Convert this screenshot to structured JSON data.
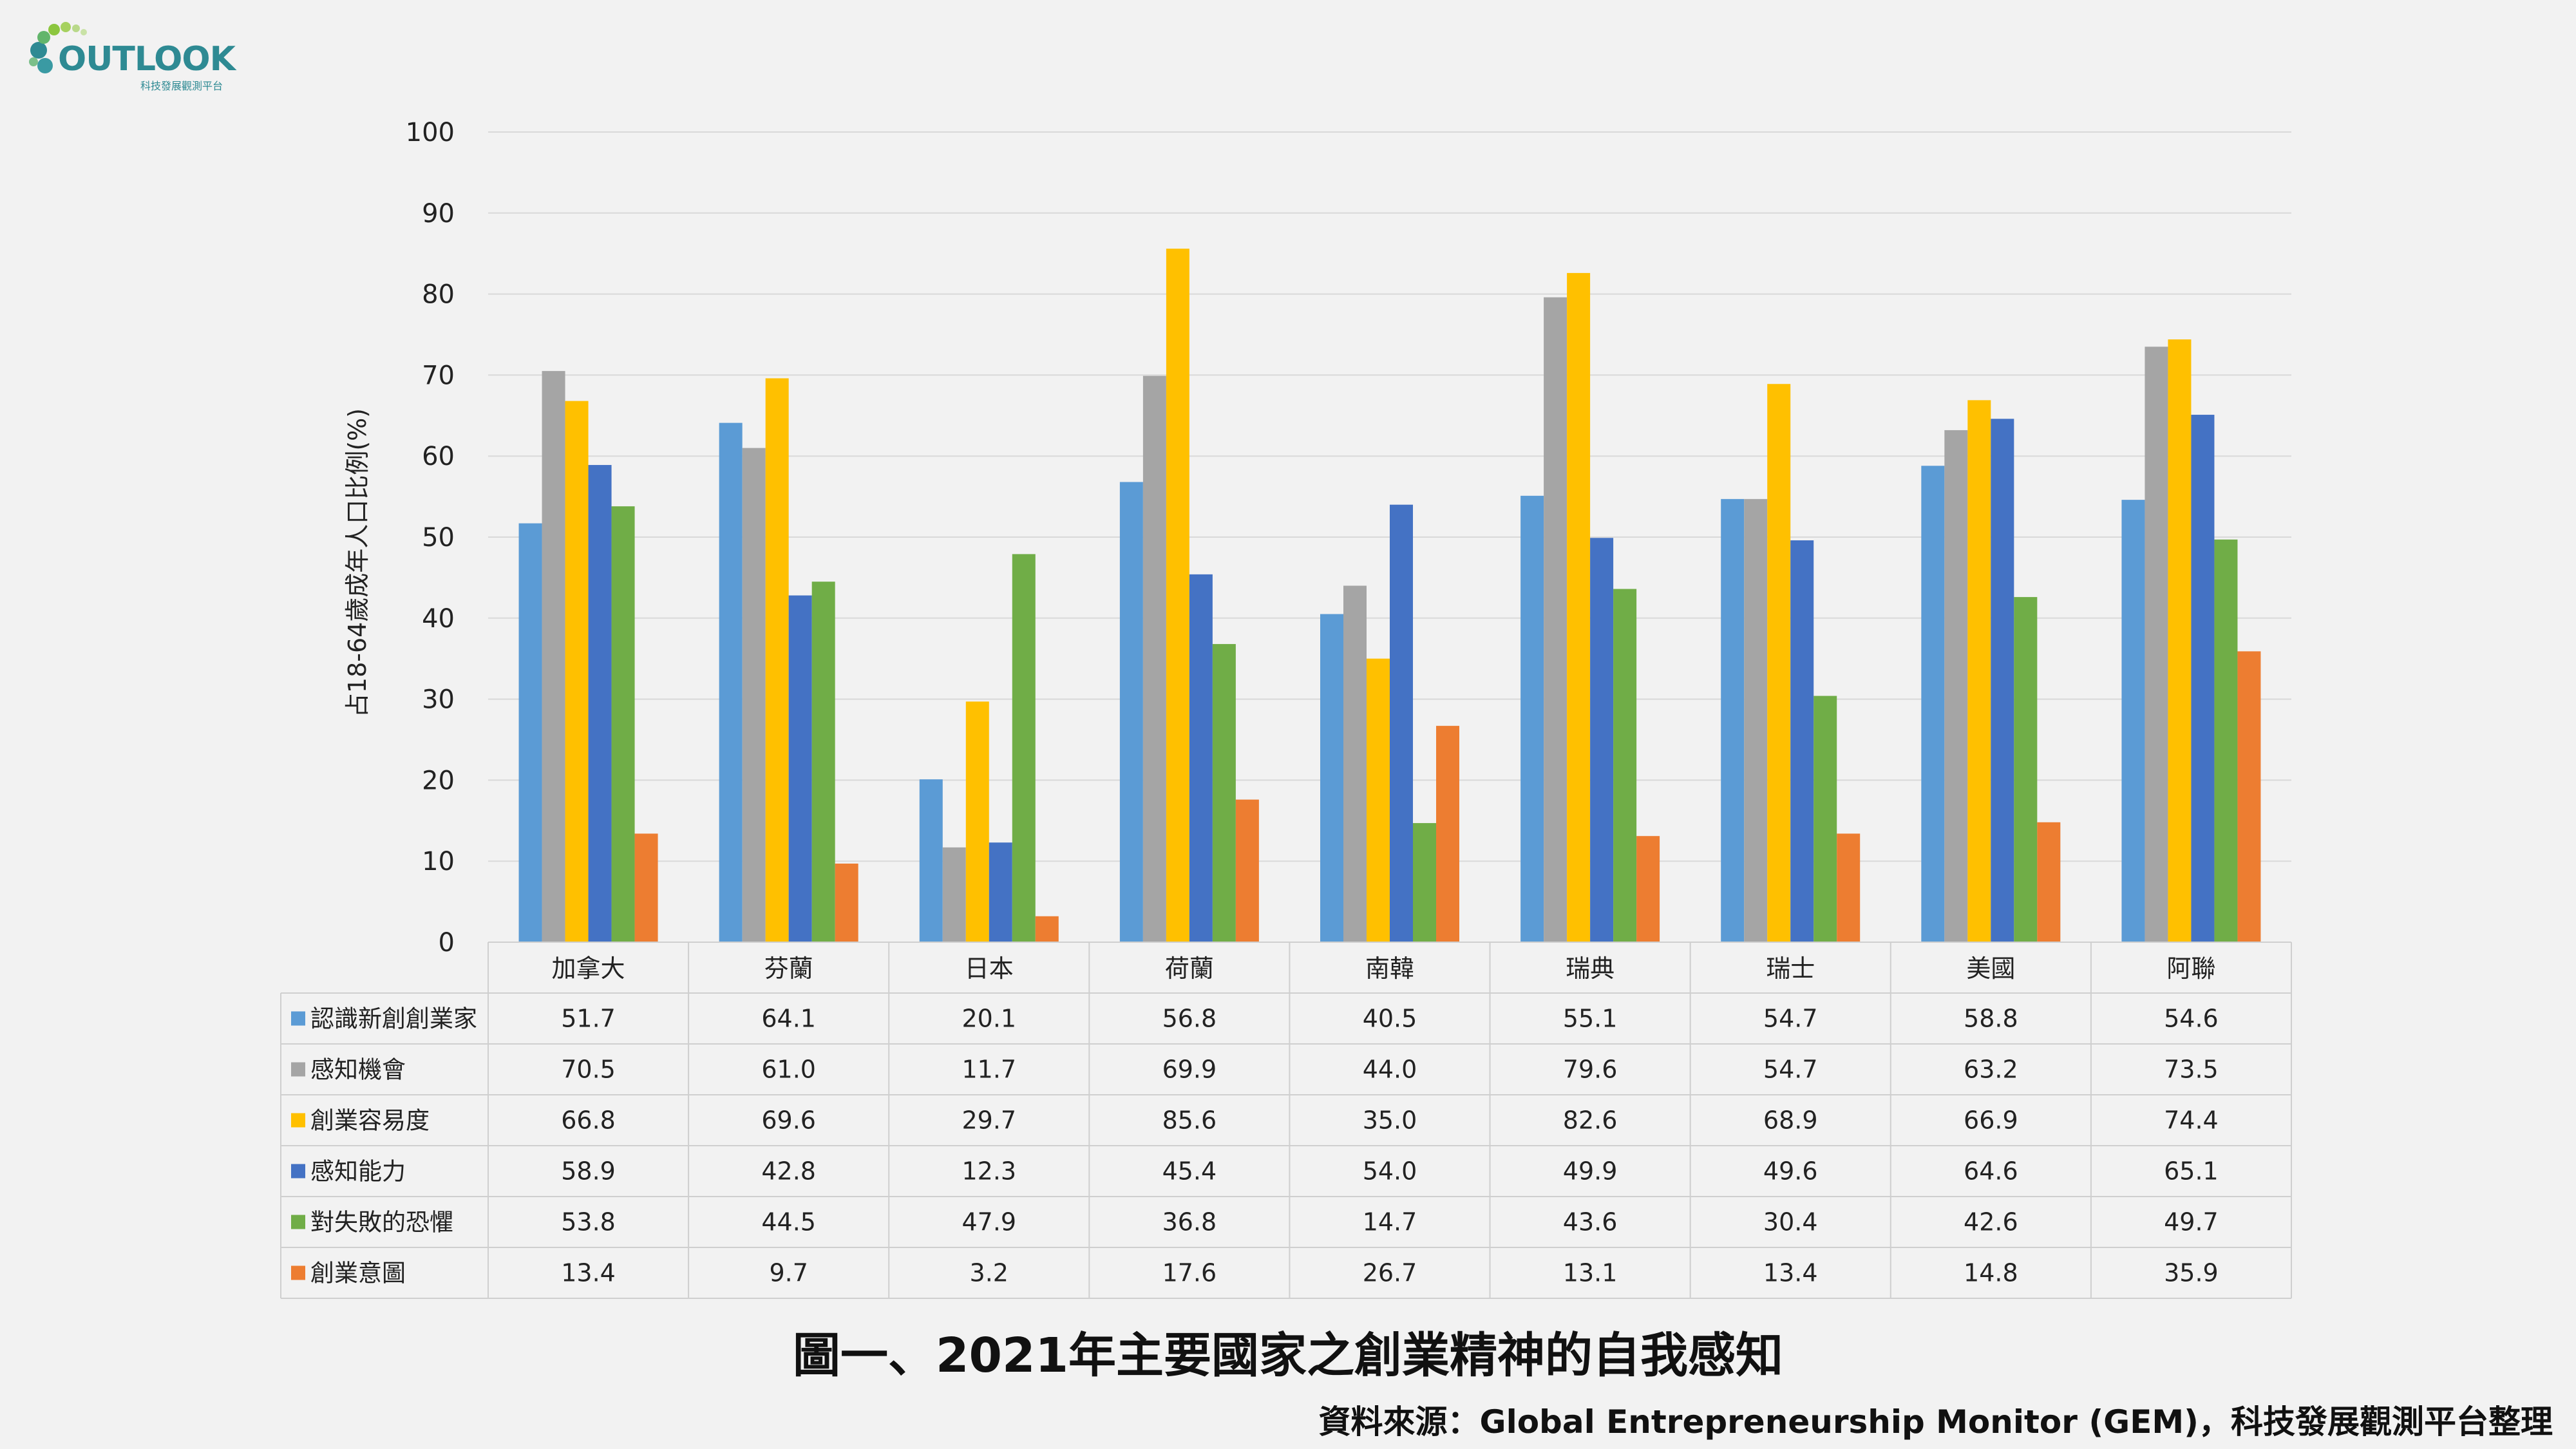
{
  "logo": {
    "wordmark": "OUTLOOK",
    "subtitle": "科技發展觀測平台"
  },
  "figure_title": "圖一、2021年主要國家之創業精神的自我感知",
  "source": "資料來源：Global Entrepreneurship Monitor (GEM)，科技發展觀測平台整理",
  "chart_data": {
    "type": "bar",
    "title": "",
    "xlabel": "",
    "ylabel": "占18-64歲成年人口比例(%)",
    "ylim": [
      0,
      100
    ],
    "yticks": [
      0,
      10,
      20,
      30,
      40,
      50,
      60,
      70,
      80,
      90,
      100
    ],
    "grid": true,
    "legend": "data-table-rows",
    "categories": [
      "加拿大",
      "芬蘭",
      "日本",
      "荷蘭",
      "南韓",
      "瑞典",
      "瑞士",
      "美國",
      "阿聯"
    ],
    "series": [
      {
        "name": "認識新創創業家",
        "color": "#5b9bd5",
        "values": [
          51.7,
          64.1,
          20.1,
          56.8,
          40.5,
          55.1,
          54.7,
          58.8,
          54.6
        ]
      },
      {
        "name": "感知機會",
        "color": "#a5a5a5",
        "values": [
          70.5,
          61.0,
          11.7,
          69.9,
          44.0,
          79.6,
          54.7,
          63.2,
          73.5
        ]
      },
      {
        "name": "創業容易度",
        "color": "#ffc000",
        "values": [
          66.8,
          69.6,
          29.7,
          85.6,
          35.0,
          82.6,
          68.9,
          66.9,
          74.4
        ]
      },
      {
        "name": "感知能力",
        "color": "#4472c4",
        "values": [
          58.9,
          42.8,
          12.3,
          45.4,
          54.0,
          49.9,
          49.6,
          64.6,
          65.1
        ]
      },
      {
        "name": "對失敗的恐懼",
        "color": "#70ad47",
        "values": [
          53.8,
          44.5,
          47.9,
          36.8,
          14.7,
          43.6,
          30.4,
          42.6,
          49.7
        ]
      },
      {
        "name": "創業意圖",
        "color": "#ed7d31",
        "values": [
          13.4,
          9.7,
          3.2,
          17.6,
          26.7,
          13.1,
          13.4,
          14.8,
          35.9
        ]
      }
    ]
  }
}
